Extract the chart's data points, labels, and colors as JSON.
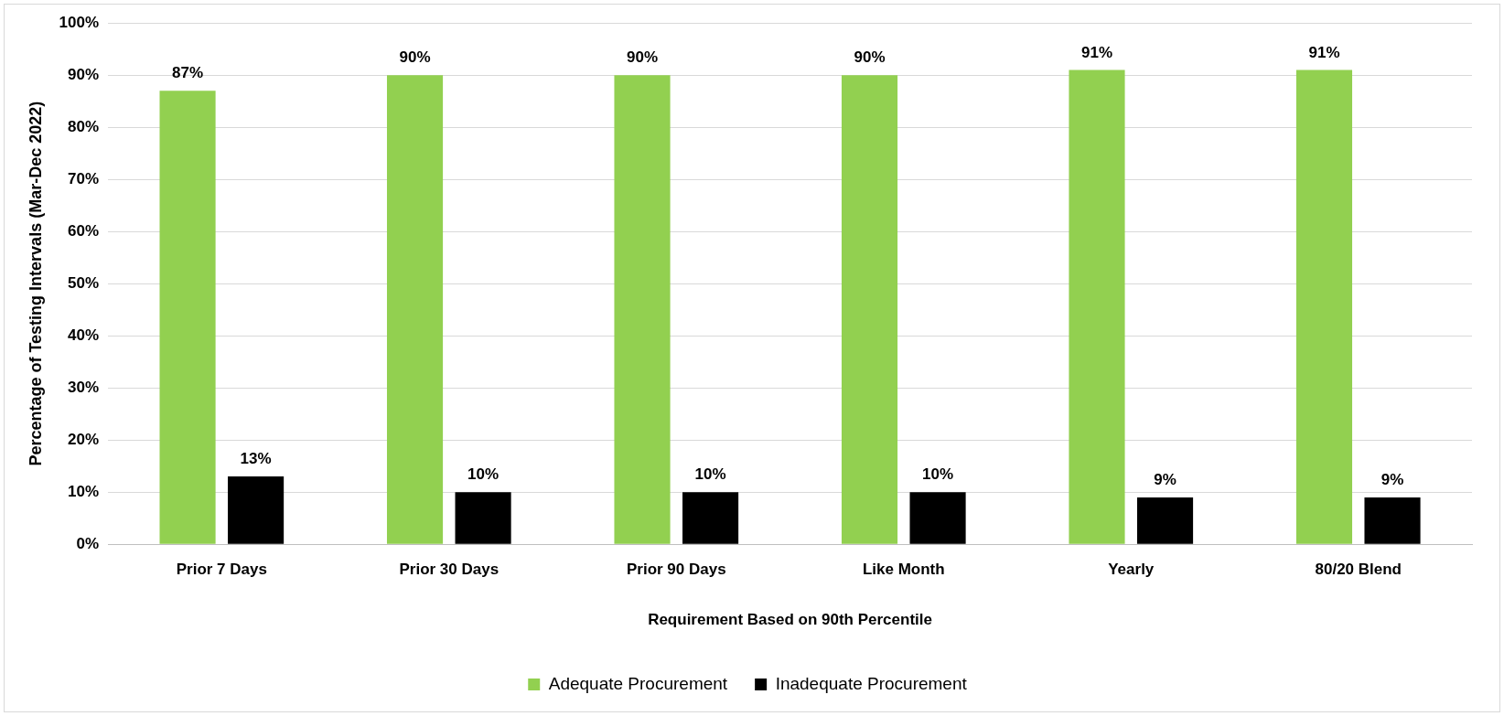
{
  "chart_data": {
    "type": "bar",
    "xlabel": "Requirement Based on 90th Percentile",
    "ylabel": "Percentage of Testing Intervals (Mar-Dec 2022)",
    "categories": [
      "Prior 7 Days",
      "Prior 30 Days",
      "Prior 90 Days",
      "Like Month",
      "Yearly",
      "80/20 Blend"
    ],
    "series": [
      {
        "name": "Adequate Procurement",
        "color": "#92d050",
        "values": [
          87,
          90,
          90,
          90,
          91,
          91
        ],
        "value_labels": [
          "87%",
          "90%",
          "90%",
          "90%",
          "91%",
          "91%"
        ]
      },
      {
        "name": "Inadequate Procurement",
        "color": "#000000",
        "values": [
          13,
          10,
          10,
          10,
          9,
          9
        ],
        "value_labels": [
          "13%",
          "10%",
          "10%",
          "10%",
          "9%",
          "9%"
        ]
      }
    ],
    "ylim": [
      0,
      100
    ],
    "yticks": [
      {
        "value": 0,
        "label": "0%"
      },
      {
        "value": 10,
        "label": "10%"
      },
      {
        "value": 20,
        "label": "20%"
      },
      {
        "value": 30,
        "label": "30%"
      },
      {
        "value": 40,
        "label": "40%"
      },
      {
        "value": 50,
        "label": "50%"
      },
      {
        "value": 60,
        "label": "60%"
      },
      {
        "value": 70,
        "label": "70%"
      },
      {
        "value": 80,
        "label": "80%"
      },
      {
        "value": 90,
        "label": "90%"
      },
      {
        "value": 100,
        "label": "100%"
      }
    ],
    "grid": "y",
    "legend": "bottom"
  }
}
